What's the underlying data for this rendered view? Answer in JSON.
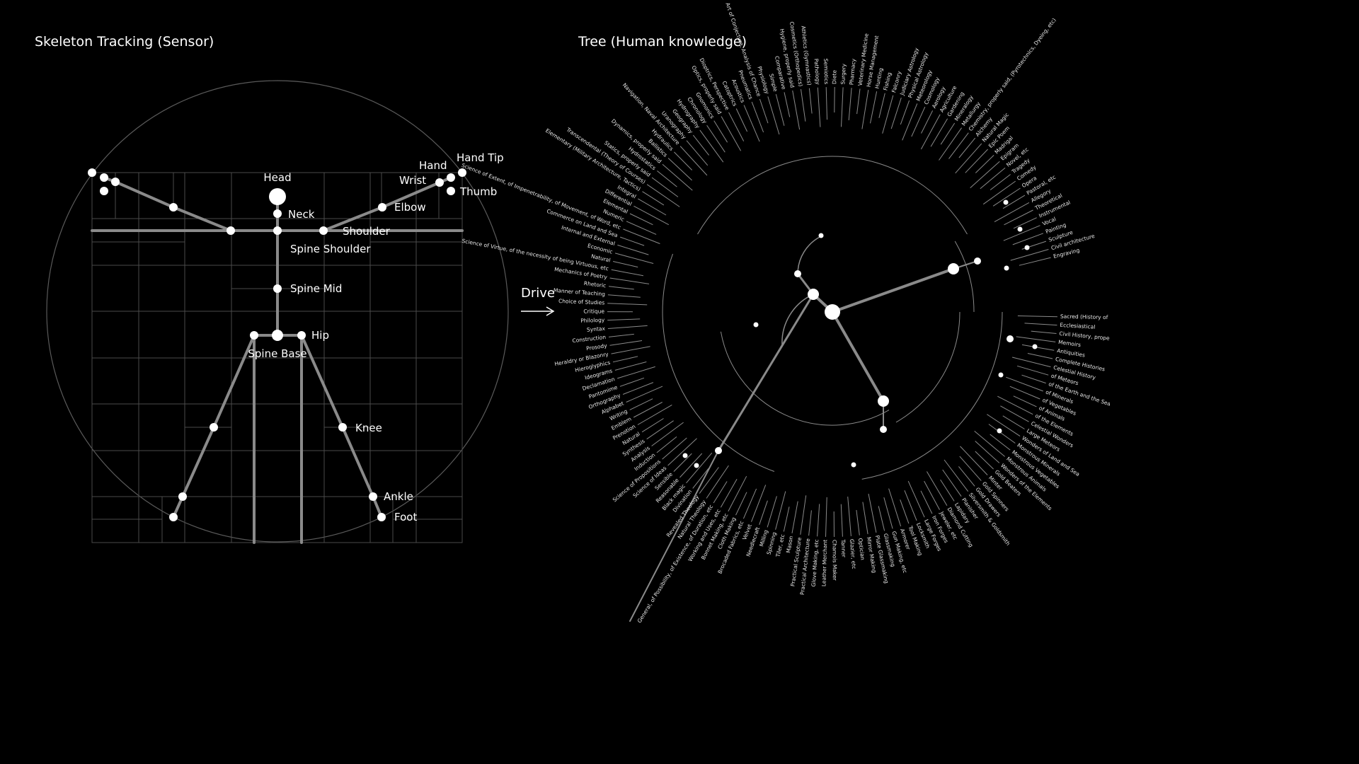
{
  "left_title": "Skeleton Tracking (Sensor)",
  "right_title": "Tree (Human knowledge)",
  "drive_label": "Drive",
  "colors": {
    "background": "#000000",
    "bone": "#8a8a8a",
    "grid": "#4a4a4a",
    "joint": "#ffffff",
    "text": "#ffffff"
  },
  "joint_labels": {
    "head": "Head",
    "neck": "Neck",
    "shoulder": "Shoulder",
    "spine_shoulder": "Spine Shoulder",
    "spine_mid": "Spine Mid",
    "hip": "Hip",
    "spine_base": "Spine Base",
    "knee": "Knee",
    "ankle": "Ankle",
    "foot": "Foot",
    "elbow": "Elbow",
    "wrist": "Wrist",
    "hand": "Hand",
    "hand_tip": "Hand Tip",
    "thumb": "Thumb"
  },
  "tree_leaves": {
    "upper": [
      "Sacred (History of Prophets)",
      "Ecclesiastical",
      "Civil History, properly said",
      "Memoirs",
      "Antiquities",
      "Complete Histories",
      "Celestial History",
      "of Meteors",
      "of the Earth and the Sea",
      "of Minerals",
      "of Vegetables",
      "of Animals",
      "of the Elements",
      "Celestial Wonders",
      "Large Meteors",
      "Wonders of Land and Sea",
      "Monstrous Minerals",
      "Monstrous Vegetables",
      "Monstrous Animals",
      "Wonders of the Elements",
      "Gold Beaters",
      "Minter",
      "Gold Spinners",
      "Gold Drawers",
      "Silversmith & Goldsmith",
      "Planisher",
      "Lapidary",
      "Diamond Cutting",
      "Jeweler, etc",
      "Iron Forges",
      "Large Forges",
      "Locksmith",
      "Tool Making",
      "Armorer",
      "Gun Making, etc",
      "Glassmaking",
      "Plate Glassmaking",
      "Mirror Making",
      "Optician",
      "Glazier, etc",
      "Tanner",
      "Chamois Maker",
      "Leather Merchant",
      "Glove Making, etc",
      "Practical Architecture",
      "Practical Sculpture",
      "Mason",
      "Tiler, etc",
      "Spinning",
      "Milling",
      "Needlecraft",
      "Velvet",
      "Brocaded Fabrics, etc",
      "Cloth Making",
      "Bonnet Making, etc",
      "Working and Uses, etc",
      "General Metaphysics, or Ontology, or Science of Being in General, of Possibility, of Existence, of Duration, etc",
      "Natural Theology",
      "Revealed Theology",
      "Divination",
      "Black magic",
      "Reasonable",
      "Sensible",
      "Science of Ideas",
      "Science of Propositions",
      "Induction",
      "Analysis",
      "Synthesis",
      "Natural",
      "Prenotion",
      "Emblem",
      "Writing",
      "Alphabet",
      "Orthography",
      "Pantomime",
      "Declamation",
      "Ideograms",
      "Hieroglyphics",
      "Heraldry or Blazonry",
      "Prosody",
      "Construction",
      "Syntax",
      "Philology",
      "Critique",
      "Choice of Studies",
      "Manner of Teaching",
      "Rhetoric",
      "Mechanics of Poetry",
      "Science of Virtue, of the necessity of being Virtuous, etc",
      "Natural",
      "Economic",
      "Internal and External",
      "Commerce on Land and Sea",
      "Science of Extent, of Impenetrability, of Movement, of Word, etc",
      "Numeric",
      "Elemental",
      "Differential",
      "Integral",
      "Elementary (Military Architecture, Tactics)",
      "Transcendental (Theory of Courses)",
      "Statics, properly said",
      "Hydrostatics",
      "Dynamics, properly said",
      "Ballistics",
      "Hydraulics",
      "Navigation, Naval Architecture",
      "Uranography",
      "Geography",
      "Hydrography",
      "Chronology",
      "Gnomonics",
      "Optics, properly said",
      "Dioptrics, Perspective",
      "Catoptrics",
      "Acoustics",
      "Pneumatics",
      "Art of Conjecture, Analysis of Chance",
      "Physiology",
      "Simple",
      "Comparative",
      "Hygiene, properly said",
      "Cosmetics (Orthopedics)",
      "Athletics (Gymnastics)",
      "Pathology",
      "Semiotics",
      "Diete",
      "Surgery",
      "Pharmacy",
      "Veterinary Medicine",
      "Horse Management",
      "Hunting",
      "Fishing",
      "Falconry",
      "Judiciary Astrology",
      "Physical Astrology",
      "Meteorology",
      "Cosmology",
      "Aerology",
      "Agriculture",
      "Gardening",
      "Mineralogy",
      "Metallurgy",
      "Chemistry, properly said, (Pyrotechnics, Dyeing, etc)",
      "Alchemy",
      "Natural Magic",
      "Epic Poem",
      "Madrigal",
      "Epigram",
      "Novel, etc",
      "Tragedy",
      "Comedy",
      "Opera",
      "Pastoral, etc",
      "Allegory",
      "Theoretical",
      "Instrumental",
      "Vocal",
      "Painting",
      "Sculpture",
      "Civil architecture",
      "Engraving"
    ]
  }
}
